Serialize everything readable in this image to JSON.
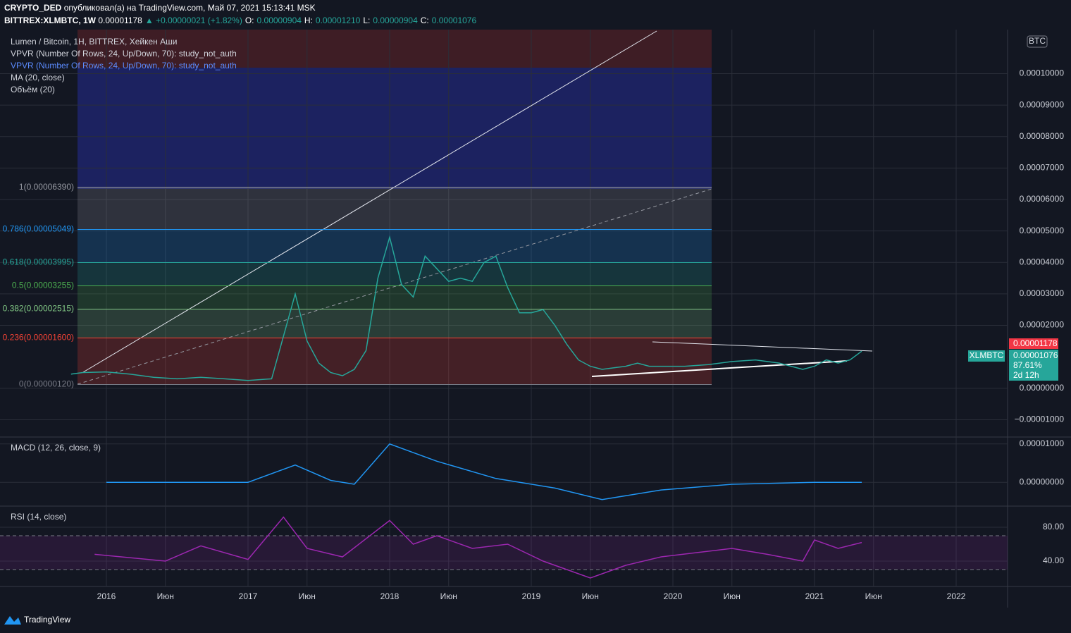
{
  "header": {
    "author": "CRYPTO_DED",
    "published": "опубликовал(а) на TradingView.com, Май 07, 2021 15:13:41 MSK",
    "symbol": "BITTREX:XLMBTC, 1W",
    "last": "0.00001178",
    "change": "▲ +0.00000021 (+1.82%)",
    "o_label": "O:",
    "o": "0.00000904",
    "h_label": "H:",
    "h": "0.00001210",
    "l_label": "L:",
    "l": "0.00000904",
    "c_label": "C:",
    "c": "0.00001076",
    "brand": "TradingView"
  },
  "legend": [
    "Lumen / Bitcoin, 1H, BITTREX, Хейкен Аши",
    "VPVR (Number Of Rows, 24, Up/Down, 70): study_not_auth",
    "VPVR (Number Of Rows, 24, Up/Down, 70): study_not_auth",
    "MA (20, close)",
    "Объём (20)"
  ],
  "price_tags": {
    "currency": "BTC",
    "last": "0.00001178",
    "symbol": "XLMBTC",
    "close": "0.00001076",
    "pct": "87.61%",
    "time": "2d 12h"
  },
  "chart_data": [
    {
      "type": "line",
      "name": "Lumen / Bitcoin",
      "color": "#26a69a",
      "x": [
        "2015-10",
        "2015-11",
        "2016-01",
        "2016-03",
        "2016-05",
        "2016-07",
        "2016-09",
        "2016-11",
        "2017-01",
        "2017-03",
        "2017-05",
        "2017-06",
        "2017-07",
        "2017-08",
        "2017-09",
        "2017-10",
        "2017-11",
        "2017-12",
        "2018-01",
        "2018-02",
        "2018-03",
        "2018-04",
        "2018-05",
        "2018-06",
        "2018-07",
        "2018-08",
        "2018-09",
        "2018-10",
        "2018-11",
        "2018-12",
        "2019-01",
        "2019-02",
        "2019-03",
        "2019-04",
        "2019-05",
        "2019-06",
        "2019-07",
        "2019-08",
        "2019-09",
        "2019-10",
        "2019-11",
        "2019-12",
        "2020-02",
        "2020-04",
        "2020-06",
        "2020-08",
        "2020-10",
        "2020-12",
        "2021-01",
        "2021-02",
        "2021-03",
        "2021-04",
        "2021-05"
      ],
      "values": [
        4.5e-06,
        5e-06,
        5.2e-06,
        4.5e-06,
        3.5e-06,
        3e-06,
        3.5e-06,
        3e-06,
        2.5e-06,
        3e-06,
        3e-05,
        1.5e-05,
        8e-06,
        5e-06,
        4e-06,
        6e-06,
        1.2e-05,
        3.5e-05,
        4.8e-05,
        3.3e-05,
        2.9e-05,
        4.2e-05,
        3.8e-05,
        3.4e-05,
        3.5e-05,
        3.4e-05,
        4e-05,
        4.2e-05,
        3.2e-05,
        2.4e-05,
        2.4e-05,
        2.5e-05,
        2e-05,
        1.4e-05,
        9e-06,
        7e-06,
        6e-06,
        6.5e-06,
        7e-06,
        8e-06,
        7e-06,
        7e-06,
        7e-06,
        7.5e-06,
        8.5e-06,
        9e-06,
        8e-06,
        6e-06,
        7e-06,
        9e-06,
        8e-06,
        9e-06,
        1.18e-05
      ],
      "ylim": [
        -1.55e-05,
        0.000114
      ],
      "yticks": [
        {
          "value": 0.0001,
          "label": "0.00010000"
        },
        {
          "value": 9e-05,
          "label": "0.00009000"
        },
        {
          "value": 8e-05,
          "label": "0.00008000"
        },
        {
          "value": 7e-05,
          "label": "0.00007000"
        },
        {
          "value": 6e-05,
          "label": "0.00006000"
        },
        {
          "value": 5e-05,
          "label": "0.00005000"
        },
        {
          "value": 4e-05,
          "label": "0.00004000"
        },
        {
          "value": 3e-05,
          "label": "0.00003000"
        },
        {
          "value": 2e-05,
          "label": "0.00002000"
        },
        {
          "value": 0,
          "label": "0.00000000"
        },
        {
          "value": -1e-05,
          "label": "−0.00001000"
        }
      ],
      "xticks": [
        {
          "value": "2016-01",
          "label": "2016"
        },
        {
          "value": "2016-06",
          "label": "Июн"
        },
        {
          "value": "2017-01",
          "label": "2017"
        },
        {
          "value": "2017-06",
          "label": "Июн"
        },
        {
          "value": "2018-01",
          "label": "2018"
        },
        {
          "value": "2018-06",
          "label": "Июн"
        },
        {
          "value": "2019-01",
          "label": "2019"
        },
        {
          "value": "2019-06",
          "label": "Июн"
        },
        {
          "value": "2020-01",
          "label": "2020"
        },
        {
          "value": "2020-06",
          "label": "Июн"
        },
        {
          "value": "2021-01",
          "label": "2021"
        },
        {
          "value": "2021-06",
          "label": "Июн"
        },
        {
          "value": "2022-01",
          "label": "2022"
        }
      ],
      "fib_levels": [
        {
          "label": "1(0.00006390)",
          "value": 6.39e-05,
          "color": "#9598a1"
        },
        {
          "label": "0.786(0.00005049)",
          "value": 5.049e-05,
          "color": "#2196f3"
        },
        {
          "label": "0.618(0.00003995)",
          "value": 3.995e-05,
          "color": "#26a69a"
        },
        {
          "label": "0.5(0.00003255)",
          "value": 3.255e-05,
          "color": "#4caf50"
        },
        {
          "label": "0.382(0.00002515)",
          "value": 2.515e-05,
          "color": "#81c784"
        },
        {
          "label": "0.236(0.00001600)",
          "value": 1.6e-05,
          "color": "#f44336"
        },
        {
          "label": "0(0.00000120)",
          "value": 1.2e-06,
          "color": "#787b86"
        }
      ]
    },
    {
      "type": "line",
      "title": "MACD (12, 26, close, 9)",
      "color": "#2196f3",
      "x": [
        "2016-01",
        "2017-01",
        "2017-05",
        "2017-08",
        "2017-10",
        "2018-01",
        "2018-05",
        "2018-10",
        "2019-03",
        "2019-07",
        "2019-12",
        "2020-06",
        "2021-01",
        "2021-05"
      ],
      "values": [
        0,
        0,
        4.5e-06,
        5e-07,
        -5e-07,
        1e-05,
        5.5e-06,
        1e-06,
        -1.5e-06,
        -4.5e-06,
        -2e-06,
        -5e-07,
        0,
        0
      ],
      "ylim": [
        -6.2e-06,
        1.18e-05
      ],
      "yticks": [
        {
          "value": 1e-05,
          "label": "0.00001000"
        },
        {
          "value": 0,
          "label": "0.00000000"
        }
      ]
    },
    {
      "type": "line",
      "title": "RSI (14, close)",
      "color": "#9c27b0",
      "x": [
        "2015-12",
        "2016-06",
        "2016-09",
        "2017-01",
        "2017-04",
        "2017-06",
        "2017-09",
        "2018-01",
        "2018-03",
        "2018-05",
        "2018-08",
        "2018-11",
        "2019-02",
        "2019-06",
        "2019-09",
        "2019-12",
        "2020-03",
        "2020-06",
        "2020-09",
        "2020-12",
        "2021-01",
        "2021-03",
        "2021-05"
      ],
      "values": [
        48,
        40,
        58,
        42,
        92,
        55,
        45,
        88,
        60,
        70,
        55,
        60,
        40,
        20,
        35,
        45,
        50,
        55,
        48,
        40,
        65,
        55,
        62
      ],
      "ylim": [
        10,
        105
      ],
      "yticks": [
        {
          "value": 80,
          "label": "80.00"
        },
        {
          "value": 40,
          "label": "40.00"
        }
      ],
      "bands": [
        70,
        30
      ]
    }
  ]
}
